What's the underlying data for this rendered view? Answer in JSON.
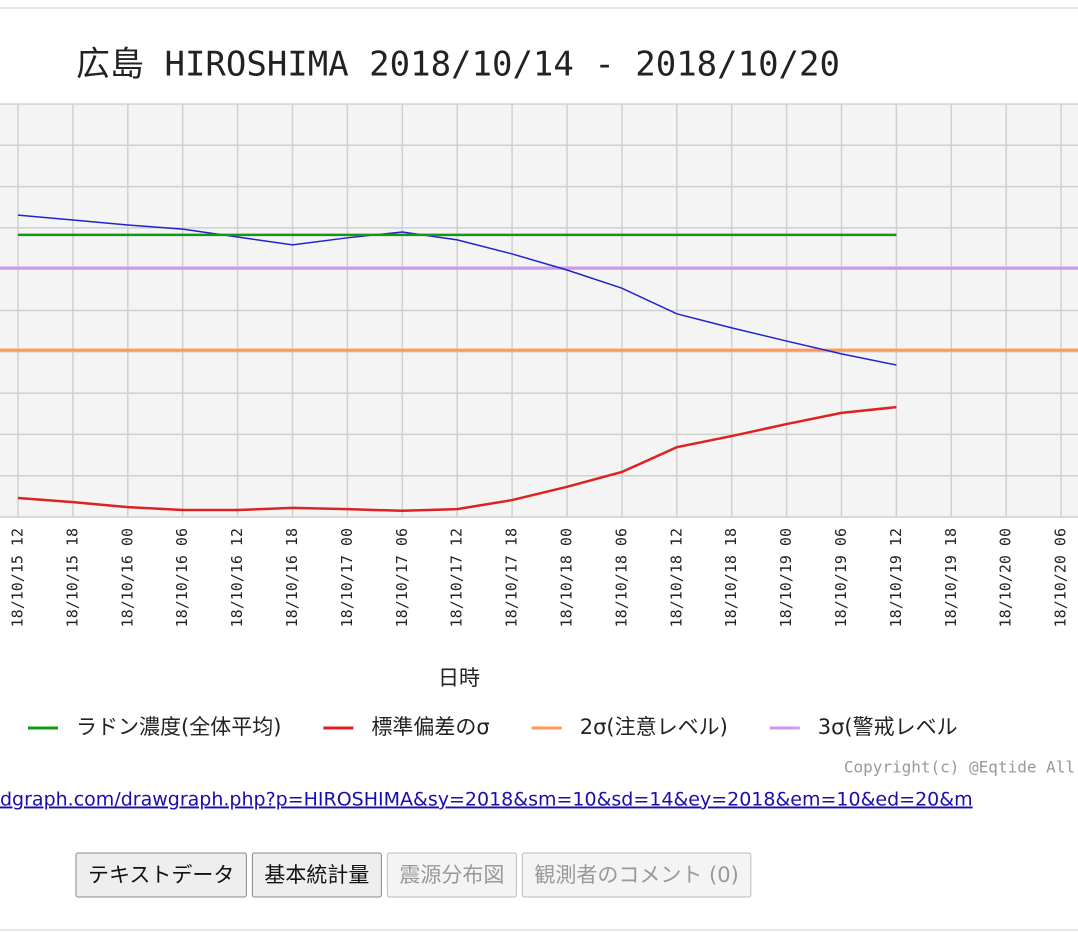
{
  "chart_data": {
    "type": "line",
    "title": "広島 HIROSHIMA 2018/10/14 - 2018/10/20",
    "xlabel": "日時",
    "categories": [
      "18/10/15 12",
      "18/10/15 18",
      "18/10/16 00",
      "18/10/16 06",
      "18/10/16 12",
      "18/10/16 18",
      "18/10/17 00",
      "18/10/17 06",
      "18/10/17 12",
      "18/10/17 18",
      "18/10/18 00",
      "18/10/18 06",
      "18/10/18 12",
      "18/10/18 18",
      "18/10/19 00",
      "18/10/19 06",
      "18/10/19 12",
      "18/10/19 18",
      "18/10/20 00",
      "18/10/20 06"
    ],
    "ylim": [
      0,
      10
    ],
    "ygrid": [
      0,
      1,
      2,
      3,
      4,
      5,
      6,
      7,
      8,
      9,
      10
    ],
    "grid": true,
    "series": [
      {
        "color": "#2222cc",
        "values": [
          7.31,
          7.19,
          7.07,
          6.97,
          6.78,
          6.59,
          6.76,
          6.9,
          6.71,
          6.37,
          5.98,
          5.54,
          4.92,
          4.58,
          4.26,
          3.95,
          3.68,
          null,
          null,
          null
        ]
      },
      {
        "name": "ラドン濃度(全体平均)",
        "color": "#119911",
        "values": [
          6.83,
          6.83,
          6.83,
          6.83,
          6.83,
          6.83,
          6.83,
          6.83,
          6.83,
          6.83,
          6.83,
          6.83,
          6.83,
          6.83,
          6.83,
          6.83,
          6.83,
          null,
          null,
          null
        ]
      },
      {
        "name": "標準偏差のσ",
        "color": "#dd2222",
        "values": [
          0.46,
          0.36,
          0.24,
          0.17,
          0.17,
          0.22,
          0.19,
          0.15,
          0.19,
          0.41,
          0.73,
          1.09,
          1.69,
          1.96,
          2.25,
          2.52,
          2.66,
          null,
          null,
          null
        ]
      }
    ],
    "levels": [
      {
        "name": "2σ(注意レベル)",
        "color": "#ff9955",
        "value": 4.04
      },
      {
        "name": "3σ(警戒レベル",
        "color": "#cc99ee",
        "value": 6.03
      }
    ],
    "copyright": "Copyright(c) @Eqtide All",
    "link": "dgraph.com/drawgraph.php?p=HIROSHIMA&sy=2018&sm=10&sd=14&ey=2018&em=10&ed=20&m",
    "buttons": [
      {
        "label": "テキストデータ",
        "enabled": true
      },
      {
        "label": "基本統計量",
        "enabled": true
      },
      {
        "label": "震源分布図",
        "enabled": false
      },
      {
        "label": "観測者のコメント (0)",
        "enabled": false
      }
    ]
  }
}
